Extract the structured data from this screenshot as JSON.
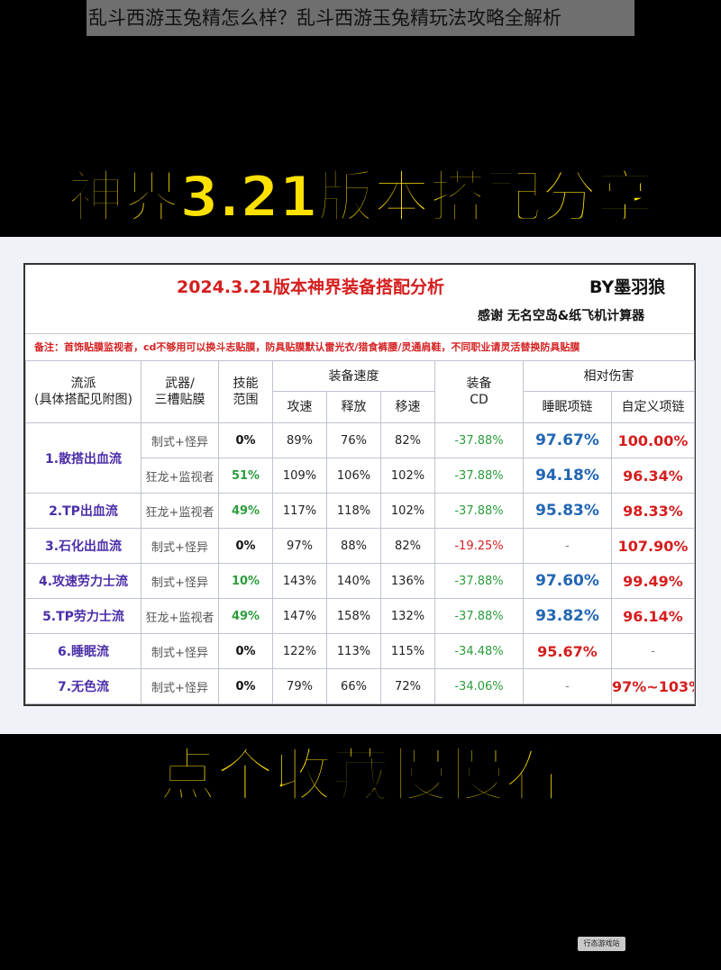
{
  "caption": "乱斗西游玉兔精怎么样？乱斗西游玉兔精玩法攻略全解析",
  "top_headline": "神界3.21版本搭配分享",
  "bottom_headline": "点个收藏慢慢看",
  "board": {
    "title": "2024.3.21版本神界装备搭配分析",
    "author": "BY墨羽狼",
    "thanks": "感谢 无名空岛&纸飞机计算器",
    "note": "备注：首饰贴膜监视者，cd不够用可以换斗志贴膜，防具贴膜默认雷光衣/猎食裤腰/灵通肩鞋，不同职业请灵活替换防具贴膜"
  },
  "headers": {
    "school": "流派",
    "school_sub": "(具体搭配见附图)",
    "weapon": "武器/",
    "weapon_sub": "三槽贴膜",
    "skill": "技能",
    "skill_sub": "范围",
    "speed_group": "装备速度",
    "attack_speed": "攻速",
    "cast_speed": "释放",
    "move_speed": "移速",
    "cd": "装备",
    "cd_sub": "CD",
    "damage_group": "相对伤害",
    "sleep_necklace": "睡眠项链",
    "custom_necklace": "自定义项链"
  },
  "rows": [
    {
      "school": "1.散搭出血流",
      "weapon": "制式+怪异",
      "range": "0%",
      "atk": "89%",
      "cast": "76%",
      "move": "82%",
      "cd": "-37.88%",
      "sleep": "97.67%",
      "custom": "100.00%"
    },
    {
      "school": "",
      "weapon": "狂龙+监视者",
      "range": "51%",
      "atk": "109%",
      "cast": "106%",
      "move": "102%",
      "cd": "-37.88%",
      "sleep": "94.18%",
      "custom": "96.34%"
    },
    {
      "school": "2.TP出血流",
      "weapon": "狂龙+监视者",
      "range": "49%",
      "atk": "117%",
      "cast": "118%",
      "move": "102%",
      "cd": "-37.88%",
      "sleep": "95.83%",
      "custom": "98.33%"
    },
    {
      "school": "3.石化出血流",
      "weapon": "制式+怪异",
      "range": "0%",
      "atk": "97%",
      "cast": "88%",
      "move": "82%",
      "cd": "-19.25%",
      "sleep": "-",
      "custom": "107.90%"
    },
    {
      "school": "4.攻速劳力士流",
      "weapon": "制式+怪异",
      "range": "10%",
      "atk": "143%",
      "cast": "140%",
      "move": "136%",
      "cd": "-37.88%",
      "sleep": "97.60%",
      "custom": "99.49%"
    },
    {
      "school": "5.TP劳力士流",
      "weapon": "狂龙+监视者",
      "range": "49%",
      "atk": "147%",
      "cast": "158%",
      "move": "132%",
      "cd": "-37.88%",
      "sleep": "93.82%",
      "custom": "96.14%"
    },
    {
      "school": "6.睡眠流",
      "weapon": "制式+怪异",
      "range": "0%",
      "atk": "122%",
      "cast": "113%",
      "move": "115%",
      "cd": "-34.48%",
      "sleep": "95.67%",
      "custom": "-"
    },
    {
      "school": "7.无色流",
      "weapon": "制式+怪异",
      "range": "0%",
      "atk": "79%",
      "cast": "66%",
      "move": "72%",
      "cd": "-34.06%",
      "sleep": "-",
      "custom": "97%~103%"
    }
  ],
  "watermark": "行态游戏站"
}
